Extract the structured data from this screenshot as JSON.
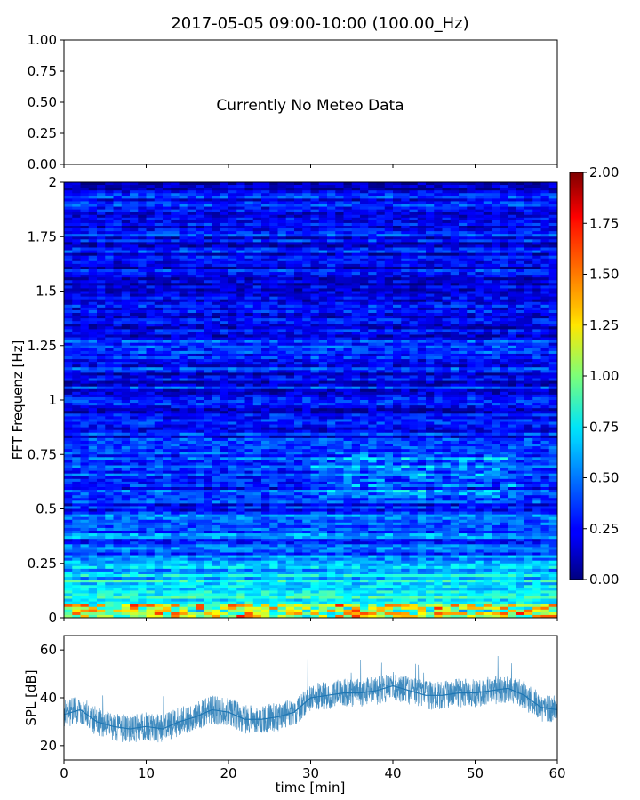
{
  "title": "2017-05-05 09:00-10:00 (100.00_Hz)",
  "meteo_panel": {
    "message": "Currently No Meteo Data",
    "ylim": [
      0,
      1
    ],
    "yticks": [
      "1.00",
      "0.75",
      "0.50",
      "0.25",
      "0.00"
    ]
  },
  "colors": {
    "spl_line": "#1f77b4",
    "colormap": "jet"
  },
  "chart_data": [
    {
      "type": "heatmap",
      "ylabel": "FFT Frequenz [Hz]",
      "xlim": [
        0,
        60
      ],
      "ylim": [
        0,
        2
      ],
      "yticks": [
        "0",
        "0.25",
        "0.5",
        "0.75",
        "1",
        "1.25",
        "1.5",
        "1.75",
        "2"
      ],
      "colorbar": {
        "vmin": 0,
        "vmax": 2,
        "ticks": [
          "0.00",
          "0.25",
          "0.50",
          "0.75",
          "1.00",
          "1.25",
          "1.50",
          "1.75",
          "2.00"
        ]
      },
      "intensity_profile": {
        "frequency_hz": [
          0,
          0.05,
          0.1,
          0.2,
          0.3,
          0.5,
          0.75,
          1.0,
          1.5,
          2.0
        ],
        "typical_value": [
          1.1,
          0.95,
          0.8,
          0.6,
          0.45,
          0.35,
          0.3,
          0.27,
          0.24,
          0.22
        ]
      }
    },
    {
      "type": "line",
      "xlabel": "time [min]",
      "ylabel": "SPL [dB]",
      "xlim": [
        0,
        60
      ],
      "ylim": [
        14,
        66
      ],
      "xticks": [
        "0",
        "10",
        "20",
        "30",
        "40",
        "50",
        "60"
      ],
      "yticks": [
        "20",
        "40",
        "60"
      ],
      "series": [
        {
          "x": [
            0,
            2,
            4,
            6,
            8,
            10,
            12,
            14,
            16,
            18,
            20,
            22,
            24,
            26,
            28,
            30,
            32,
            34,
            36,
            38,
            40,
            42,
            44,
            46,
            48,
            50,
            52,
            54,
            56,
            58,
            60
          ],
          "y": [
            33,
            35,
            30,
            28,
            27,
            28,
            27,
            30,
            32,
            35,
            34,
            31,
            31,
            32,
            34,
            40,
            41,
            42,
            42,
            43,
            45,
            43,
            41,
            41,
            42,
            42,
            43,
            44,
            41,
            36,
            35
          ]
        }
      ]
    }
  ]
}
